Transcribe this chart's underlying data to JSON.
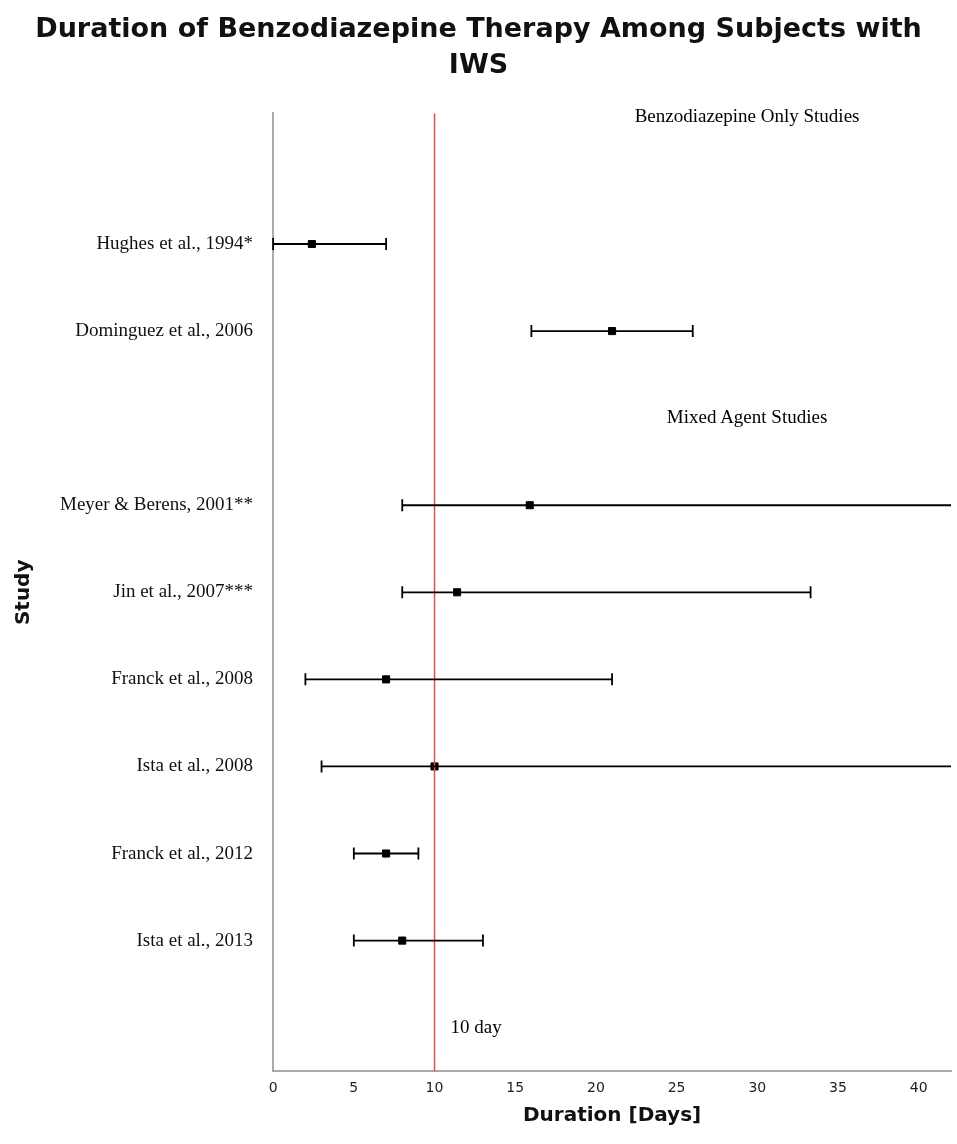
{
  "chart_data": {
    "type": "scatter",
    "orientation": "horizontal",
    "title": "Duration of Benzodiazepine Therapy Among Subjects with IWS",
    "xlabel": "Duration [Days]",
    "ylabel": "Study",
    "categories": [
      null,
      "Hughes et al., 1994*",
      "Dominguez et al., 2006",
      null,
      "Meyer & Berens, 2001**",
      "Jin et al., 2007***",
      "Franck et al., 2008",
      "Ista et al., 2008",
      "Franck et al., 2012",
      "Ista et al., 2013",
      null
    ],
    "values": [
      null,
      2.4,
      21,
      null,
      15.9,
      11.4,
      7,
      10,
      7,
      8,
      null
    ],
    "errors": [
      null,
      [
        0,
        7
      ],
      [
        16,
        26
      ],
      null,
      [
        8,
        42
      ],
      [
        8,
        33.3
      ],
      [
        2,
        21
      ],
      [
        3,
        42
      ],
      [
        5,
        9
      ],
      [
        5,
        13
      ],
      null
    ],
    "color": "#000000",
    "marker": "square",
    "grid": false,
    "legend": false,
    "xlim": [
      0,
      42
    ],
    "xticks": [
      0,
      5,
      10,
      15,
      20,
      25,
      30,
      35,
      40
    ],
    "ref_lines": [
      {
        "axis": "x",
        "value": 10,
        "label": "10 day",
        "color": "#d9534f"
      }
    ],
    "annotations": [
      "Benzodiazepine Only Studies",
      "Mixed Agent Studies"
    ]
  }
}
